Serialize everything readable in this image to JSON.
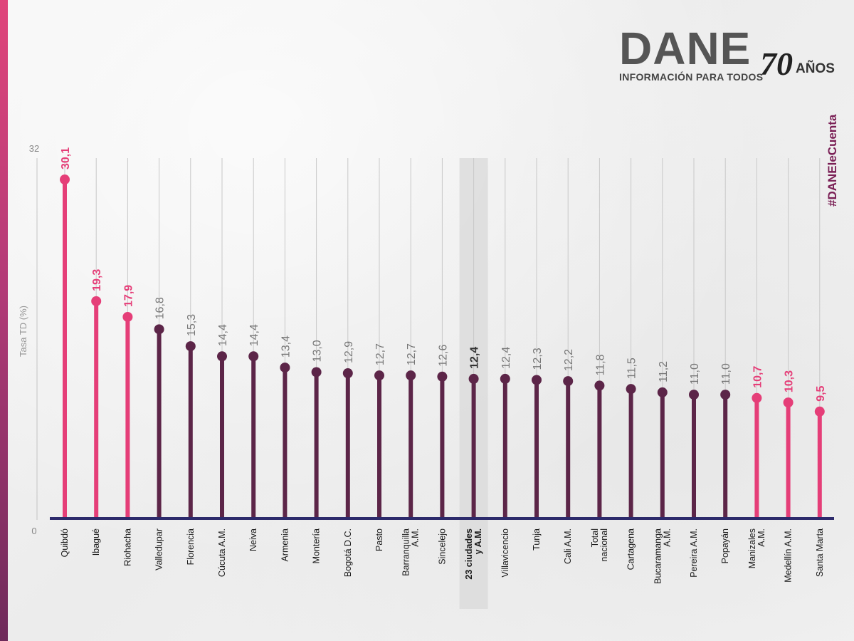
{
  "brand": {
    "logo_text": "DANE",
    "tagline": "INFORMACIÓN PARA TODOS",
    "anniversary_number": "70",
    "anniversary_text": "AÑOS",
    "hashtag": "#DANEleCuenta"
  },
  "colors": {
    "highlight": "#e53e78",
    "default": "#5c2548",
    "baseline": "#2c2a6b",
    "highlight_band": "#dcdcdc",
    "value_default": "#777777",
    "value_bold": "#333333"
  },
  "chart_data": {
    "type": "lollipop",
    "ylabel": "Tasa TD (%)",
    "ylim": [
      0,
      32
    ],
    "yticks": [
      "0",
      "32"
    ],
    "grid": true,
    "categories": [
      {
        "label": [
          "Quibdó"
        ],
        "value": 30.1,
        "value_label": "30,1",
        "group": "highlight"
      },
      {
        "label": [
          "Ibagué"
        ],
        "value": 19.3,
        "value_label": "19,3",
        "group": "highlight"
      },
      {
        "label": [
          "Riohacha"
        ],
        "value": 17.9,
        "value_label": "17,9",
        "group": "highlight"
      },
      {
        "label": [
          "Valledupar"
        ],
        "value": 16.8,
        "value_label": "16,8",
        "group": "default"
      },
      {
        "label": [
          "Florencia"
        ],
        "value": 15.3,
        "value_label": "15,3",
        "group": "default"
      },
      {
        "label": [
          "Cúcuta A.M."
        ],
        "value": 14.4,
        "value_label": "14,4",
        "group": "default"
      },
      {
        "label": [
          "Neiva"
        ],
        "value": 14.4,
        "value_label": "14,4",
        "group": "default"
      },
      {
        "label": [
          "Armenia"
        ],
        "value": 13.4,
        "value_label": "13,4",
        "group": "default"
      },
      {
        "label": [
          "Montería"
        ],
        "value": 13.0,
        "value_label": "13,0",
        "group": "default"
      },
      {
        "label": [
          "Bogotá D.C."
        ],
        "value": 12.9,
        "value_label": "12,9",
        "group": "default"
      },
      {
        "label": [
          "Pasto"
        ],
        "value": 12.7,
        "value_label": "12,7",
        "group": "default"
      },
      {
        "label": [
          "Barranquilla",
          "A.M."
        ],
        "value": 12.7,
        "value_label": "12,7",
        "group": "default"
      },
      {
        "label": [
          "Sincelejo"
        ],
        "value": 12.6,
        "value_label": "12,6",
        "group": "default"
      },
      {
        "label": [
          "23 ciudades",
          "y A.M."
        ],
        "value": 12.4,
        "value_label": "12,4",
        "group": "total"
      },
      {
        "label": [
          "Villavicencio"
        ],
        "value": 12.4,
        "value_label": "12,4",
        "group": "default"
      },
      {
        "label": [
          "Tunja"
        ],
        "value": 12.3,
        "value_label": "12,3",
        "group": "default"
      },
      {
        "label": [
          "Cali A.M."
        ],
        "value": 12.2,
        "value_label": "12,2",
        "group": "default"
      },
      {
        "label": [
          "Total",
          "nacional"
        ],
        "value": 11.8,
        "value_label": "11,8",
        "group": "default"
      },
      {
        "label": [
          "Cartagena"
        ],
        "value": 11.5,
        "value_label": "11,5",
        "group": "default"
      },
      {
        "label": [
          "Bucaramanga",
          "A.M."
        ],
        "value": 11.2,
        "value_label": "11,2",
        "group": "default"
      },
      {
        "label": [
          "Pereira A.M."
        ],
        "value": 11.0,
        "value_label": "11,0",
        "group": "default"
      },
      {
        "label": [
          "Popayán"
        ],
        "value": 11.0,
        "value_label": "11,0",
        "group": "default"
      },
      {
        "label": [
          "Manizales",
          "A.M."
        ],
        "value": 10.7,
        "value_label": "10,7",
        "group": "highlight"
      },
      {
        "label": [
          "Medellín A.M."
        ],
        "value": 10.3,
        "value_label": "10,3",
        "group": "highlight"
      },
      {
        "label": [
          "Santa Marta"
        ],
        "value": 9.5,
        "value_label": "9,5",
        "group": "highlight"
      }
    ]
  }
}
